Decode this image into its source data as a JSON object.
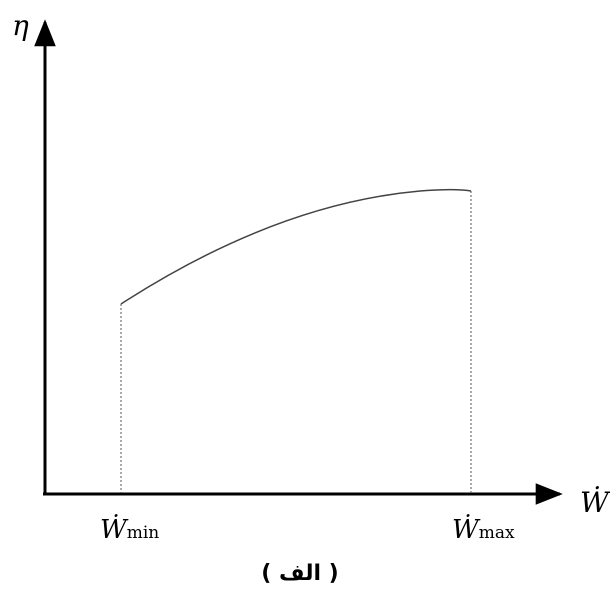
{
  "axes": {
    "y_label": "η",
    "x_label": "Ẇ"
  },
  "x_ticks": [
    {
      "symbol": "Ẇ",
      "subscript": "min"
    },
    {
      "symbol": "Ẇ",
      "subscript": "max"
    }
  ],
  "caption": "( الف )"
}
